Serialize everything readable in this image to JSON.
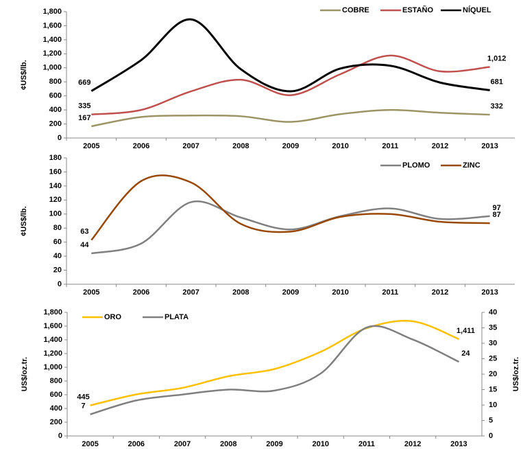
{
  "chart_data": [
    {
      "type": "line",
      "ylabel": "¢US$/lb.",
      "legend": "top-right",
      "categories": [
        "2005",
        "2006",
        "2007",
        "2008",
        "2009",
        "2010",
        "2011",
        "2012",
        "2013"
      ],
      "ylim": [
        0,
        1800
      ],
      "yticks": [
        0,
        200,
        400,
        600,
        800,
        {
          "value": 1000,
          "label": "1,000"
        },
        {
          "value": 1200,
          "label": "1,200"
        },
        {
          "value": 1400,
          "label": "1,400"
        },
        {
          "value": 1600,
          "label": "1,600"
        },
        {
          "value": 1800,
          "label": "1,800"
        }
      ],
      "series": [
        {
          "name": "COBRE",
          "color": "#9c9464",
          "values": [
            167,
            300,
            320,
            310,
            230,
            340,
            400,
            360,
            332
          ],
          "value_labels": [
            "167",
            null,
            null,
            null,
            null,
            null,
            null,
            null,
            "332"
          ]
        },
        {
          "name": "ESTAÑO",
          "color": "#c0504d",
          "values": [
            335,
            400,
            665,
            830,
            610,
            910,
            1175,
            950,
            1012
          ],
          "value_labels": [
            "335",
            null,
            null,
            null,
            null,
            null,
            null,
            null,
            "1,012"
          ]
        },
        {
          "name": "NÍQUEL",
          "color": "#000000",
          "values": [
            669,
            1110,
            1690,
            980,
            665,
            990,
            1030,
            790,
            681
          ],
          "value_labels": [
            "669",
            null,
            null,
            null,
            null,
            null,
            null,
            null,
            "681"
          ]
        }
      ]
    },
    {
      "type": "line",
      "ylabel": "¢US$/lb.",
      "legend": "top-right",
      "categories": [
        "2005",
        "2006",
        "2007",
        "2008",
        "2009",
        "2010",
        "2011",
        "2012",
        "2013"
      ],
      "ylim": [
        0,
        180
      ],
      "yticks": [
        0,
        20,
        40,
        60,
        80,
        100,
        120,
        140,
        160,
        180
      ],
      "series": [
        {
          "name": "PLOMO",
          "color": "#808080",
          "values": [
            44,
            58,
            117,
            95,
            78,
            97,
            108,
            93,
            97
          ],
          "value_labels": [
            "44",
            null,
            null,
            null,
            null,
            null,
            null,
            null,
            "97"
          ]
        },
        {
          "name": "ZINC",
          "color": "#984807",
          "values": [
            63,
            147,
            145,
            86,
            75,
            96,
            100,
            89,
            87
          ],
          "value_labels": [
            "63",
            null,
            null,
            null,
            null,
            null,
            null,
            null,
            "87"
          ]
        }
      ]
    },
    {
      "type": "line",
      "ylabel": "US$/oz.tr.",
      "y2label": "US$/oz.tr.",
      "legend": "top-left",
      "categories": [
        "2005",
        "2006",
        "2007",
        "2008",
        "2009",
        "2010",
        "2011",
        "2012",
        "2013"
      ],
      "ylim": [
        0,
        1800
      ],
      "yticks": [
        0,
        200,
        400,
        600,
        800,
        {
          "value": 1000,
          "label": "1,000"
        },
        {
          "value": 1200,
          "label": "1,200"
        },
        {
          "value": 1400,
          "label": "1,400"
        },
        {
          "value": 1600,
          "label": "1,600"
        },
        {
          "value": 1800,
          "label": "1,800"
        }
      ],
      "y2lim": [
        0,
        40
      ],
      "y2ticks": [
        0,
        5,
        10,
        15,
        20,
        25,
        30,
        35,
        40
      ],
      "series": [
        {
          "name": "ORO",
          "color": "#ffc000",
          "values": [
            445,
            605,
            700,
            870,
            975,
            1225,
            1570,
            1670,
            1411
          ],
          "value_labels": [
            "445",
            null,
            null,
            null,
            null,
            null,
            null,
            null,
            "1,411"
          ]
        },
        {
          "name": "PLATA",
          "color": "#7f7f7f",
          "axis": "y2",
          "values": [
            7,
            11.5,
            13.4,
            15,
            14.7,
            20.2,
            35.1,
            31.2,
            24
          ],
          "value_labels": [
            "7",
            null,
            null,
            null,
            null,
            null,
            null,
            null,
            "24"
          ]
        }
      ]
    }
  ]
}
